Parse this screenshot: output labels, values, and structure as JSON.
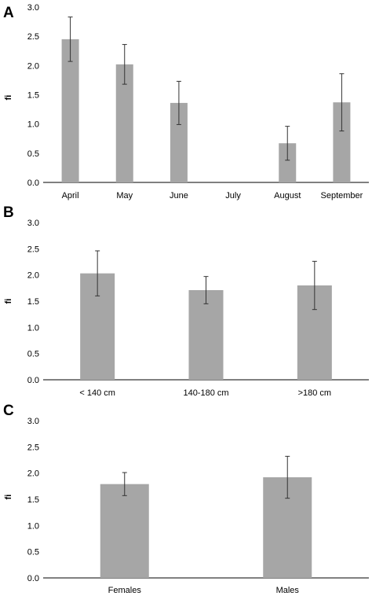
{
  "chart_data": [
    {
      "panel": "A",
      "type": "bar",
      "ylabel": "fi",
      "ylim": [
        0,
        3.0
      ],
      "yticks": [
        "0.0",
        "0.5",
        "1.0",
        "1.5",
        "2.0",
        "2.5",
        "3.0"
      ],
      "categories": [
        "April",
        "May",
        "June",
        "July",
        "August",
        "September"
      ],
      "values": [
        2.45,
        2.02,
        1.36,
        0,
        0.67,
        1.37
      ],
      "errors": [
        0.38,
        0.34,
        0.37,
        0,
        0.29,
        0.49
      ],
      "bar_color": "#a6a6a6"
    },
    {
      "panel": "B",
      "type": "bar",
      "ylabel": "fi",
      "ylim": [
        0,
        3.0
      ],
      "yticks": [
        "0.0",
        "0.5",
        "1.0",
        "1.5",
        "2.0",
        "2.5",
        "3.0"
      ],
      "categories": [
        "< 140 cm",
        "140-180 cm",
        ">180 cm"
      ],
      "values": [
        2.03,
        1.71,
        1.8
      ],
      "errors": [
        0.43,
        0.26,
        0.46
      ],
      "bar_color": "#a6a6a6"
    },
    {
      "panel": "C",
      "type": "bar",
      "ylabel": "fi",
      "ylim": [
        0,
        3.0
      ],
      "yticks": [
        "0.0",
        "0.5",
        "1.0",
        "1.5",
        "2.0",
        "2.5",
        "3.0"
      ],
      "categories": [
        "Females",
        "Males"
      ],
      "values": [
        1.79,
        1.92
      ],
      "errors": [
        0.22,
        0.4
      ],
      "bar_color": "#a6a6a6"
    }
  ]
}
